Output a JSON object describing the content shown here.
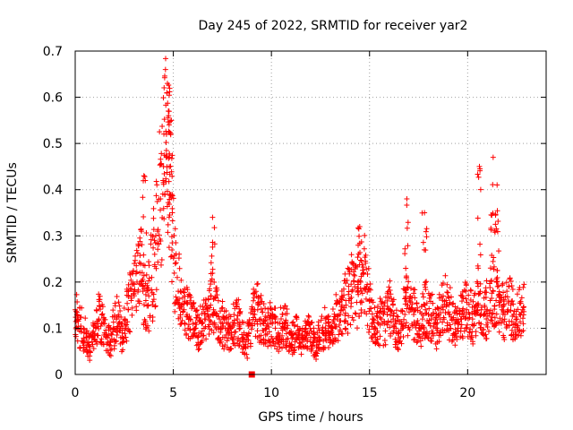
{
  "chart_data": {
    "type": "scatter",
    "title": "Day 245 of 2022, SRMTID for receiver yar2",
    "xlabel": "GPS time / hours",
    "ylabel": "SRMTID / TECUs",
    "xlim": [
      0,
      24
    ],
    "ylim": [
      0,
      0.7
    ],
    "xticks": [
      0,
      5,
      10,
      15,
      20
    ],
    "yticks": [
      0,
      0.1,
      0.2,
      0.3,
      0.4,
      0.5,
      0.6,
      0.7
    ],
    "xtick_labels": [
      "0",
      "5",
      "10",
      "15",
      "20"
    ],
    "ytick_labels": [
      "0",
      "0.1",
      "0.2",
      "0.3",
      "0.4",
      "0.5",
      "0.6",
      "0.7"
    ],
    "grid": true,
    "marker": "plus",
    "color": "#ff0000",
    "series": [
      {
        "name": "SRMTID",
        "x": [
          0.0,
          0.15,
          0.3,
          0.45,
          0.6,
          0.75,
          0.9,
          1.05,
          1.2,
          1.35,
          1.5,
          1.65,
          1.8,
          1.95,
          2.1,
          2.25,
          2.4,
          2.55,
          2.7,
          2.85,
          3.0,
          3.15,
          3.3,
          3.45,
          3.6,
          3.75,
          3.9,
          4.05,
          4.2,
          4.35,
          4.5,
          4.65,
          4.8,
          4.95,
          5.1,
          5.25,
          5.4,
          5.55,
          5.7,
          5.85,
          6.0,
          6.15,
          6.3,
          6.45,
          6.6,
          6.75,
          6.9,
          7.05,
          7.2,
          7.35,
          7.5,
          7.65,
          7.8,
          7.95,
          8.1,
          8.25,
          8.4,
          8.55,
          8.7,
          8.85,
          9.0,
          9.15,
          9.3,
          9.45,
          9.6,
          9.75,
          9.9,
          10.05,
          10.2,
          10.35,
          10.5,
          10.65,
          10.8,
          10.95,
          11.1,
          11.25,
          11.4,
          11.55,
          11.7,
          11.85,
          12.0,
          12.15,
          12.3,
          12.45,
          12.6,
          12.75,
          12.9,
          13.05,
          13.2,
          13.35,
          13.5,
          13.65,
          13.8,
          13.95,
          14.1,
          14.25,
          14.4,
          14.55,
          14.7,
          14.85,
          15.0,
          15.15,
          15.3,
          15.45,
          15.6,
          15.75,
          15.9,
          16.05,
          16.2,
          16.35,
          16.5,
          16.65,
          16.8,
          16.95,
          17.1,
          17.25,
          17.4,
          17.55,
          17.7,
          17.85,
          18.0,
          18.15,
          18.3,
          18.45,
          18.6,
          18.75,
          18.9,
          19.05,
          19.2,
          19.35,
          19.5,
          19.65,
          19.8,
          19.95,
          20.1,
          20.25,
          20.4,
          20.55,
          20.7,
          20.85,
          21.0,
          21.15,
          21.3,
          21.45,
          21.6,
          21.75,
          21.9,
          22.05,
          22.2,
          22.35,
          22.5,
          22.65,
          22.8
        ],
        "y": [
          0.14,
          0.12,
          0.1,
          0.09,
          0.07,
          0.06,
          0.08,
          0.1,
          0.12,
          0.11,
          0.09,
          0.08,
          0.07,
          0.1,
          0.12,
          0.11,
          0.09,
          0.1,
          0.14,
          0.16,
          0.18,
          0.2,
          0.22,
          0.18,
          0.16,
          0.17,
          0.21,
          0.26,
          0.31,
          0.38,
          0.45,
          0.52,
          0.47,
          0.35,
          0.24,
          0.18,
          0.15,
          0.14,
          0.13,
          0.12,
          0.11,
          0.1,
          0.09,
          0.11,
          0.12,
          0.13,
          0.15,
          0.14,
          0.13,
          0.12,
          0.11,
          0.1,
          0.09,
          0.1,
          0.11,
          0.12,
          0.1,
          0.08,
          0.06,
          0.09,
          0.11,
          0.13,
          0.14,
          0.12,
          0.11,
          0.1,
          0.12,
          0.11,
          0.1,
          0.09,
          0.1,
          0.11,
          0.1,
          0.09,
          0.08,
          0.09,
          0.08,
          0.07,
          0.08,
          0.09,
          0.08,
          0.07,
          0.06,
          0.08,
          0.09,
          0.1,
          0.09,
          0.1,
          0.11,
          0.12,
          0.13,
          0.14,
          0.15,
          0.16,
          0.18,
          0.19,
          0.18,
          0.2,
          0.22,
          0.19,
          0.16,
          0.12,
          0.1,
          0.11,
          0.12,
          0.11,
          0.13,
          0.14,
          0.12,
          0.1,
          0.09,
          0.11,
          0.13,
          0.15,
          0.14,
          0.13,
          0.11,
          0.1,
          0.12,
          0.14,
          0.13,
          0.12,
          0.11,
          0.1,
          0.12,
          0.14,
          0.16,
          0.13,
          0.12,
          0.11,
          0.1,
          0.12,
          0.13,
          0.14,
          0.13,
          0.12,
          0.13,
          0.15,
          0.14,
          0.13,
          0.14,
          0.16,
          0.18,
          0.16,
          0.15,
          0.14,
          0.13,
          0.14,
          0.15,
          0.13,
          0.12,
          0.13,
          0.14
        ]
      }
    ],
    "peaks": [
      {
        "x": 4.6,
        "y": 0.66
      },
      {
        "x": 4.7,
        "y": 0.63
      },
      {
        "x": 4.75,
        "y": 0.57
      },
      {
        "x": 4.9,
        "y": 0.55
      },
      {
        "x": 3.5,
        "y": 0.43
      },
      {
        "x": 7.0,
        "y": 0.34
      },
      {
        "x": 14.5,
        "y": 0.32
      },
      {
        "x": 16.9,
        "y": 0.38
      },
      {
        "x": 17.8,
        "y": 0.35
      },
      {
        "x": 20.6,
        "y": 0.45
      },
      {
        "x": 21.3,
        "y": 0.47
      },
      {
        "x": 21.5,
        "y": 0.41
      }
    ],
    "special_marker": {
      "x": 9.0,
      "y": 0.0,
      "shape": "square"
    }
  }
}
